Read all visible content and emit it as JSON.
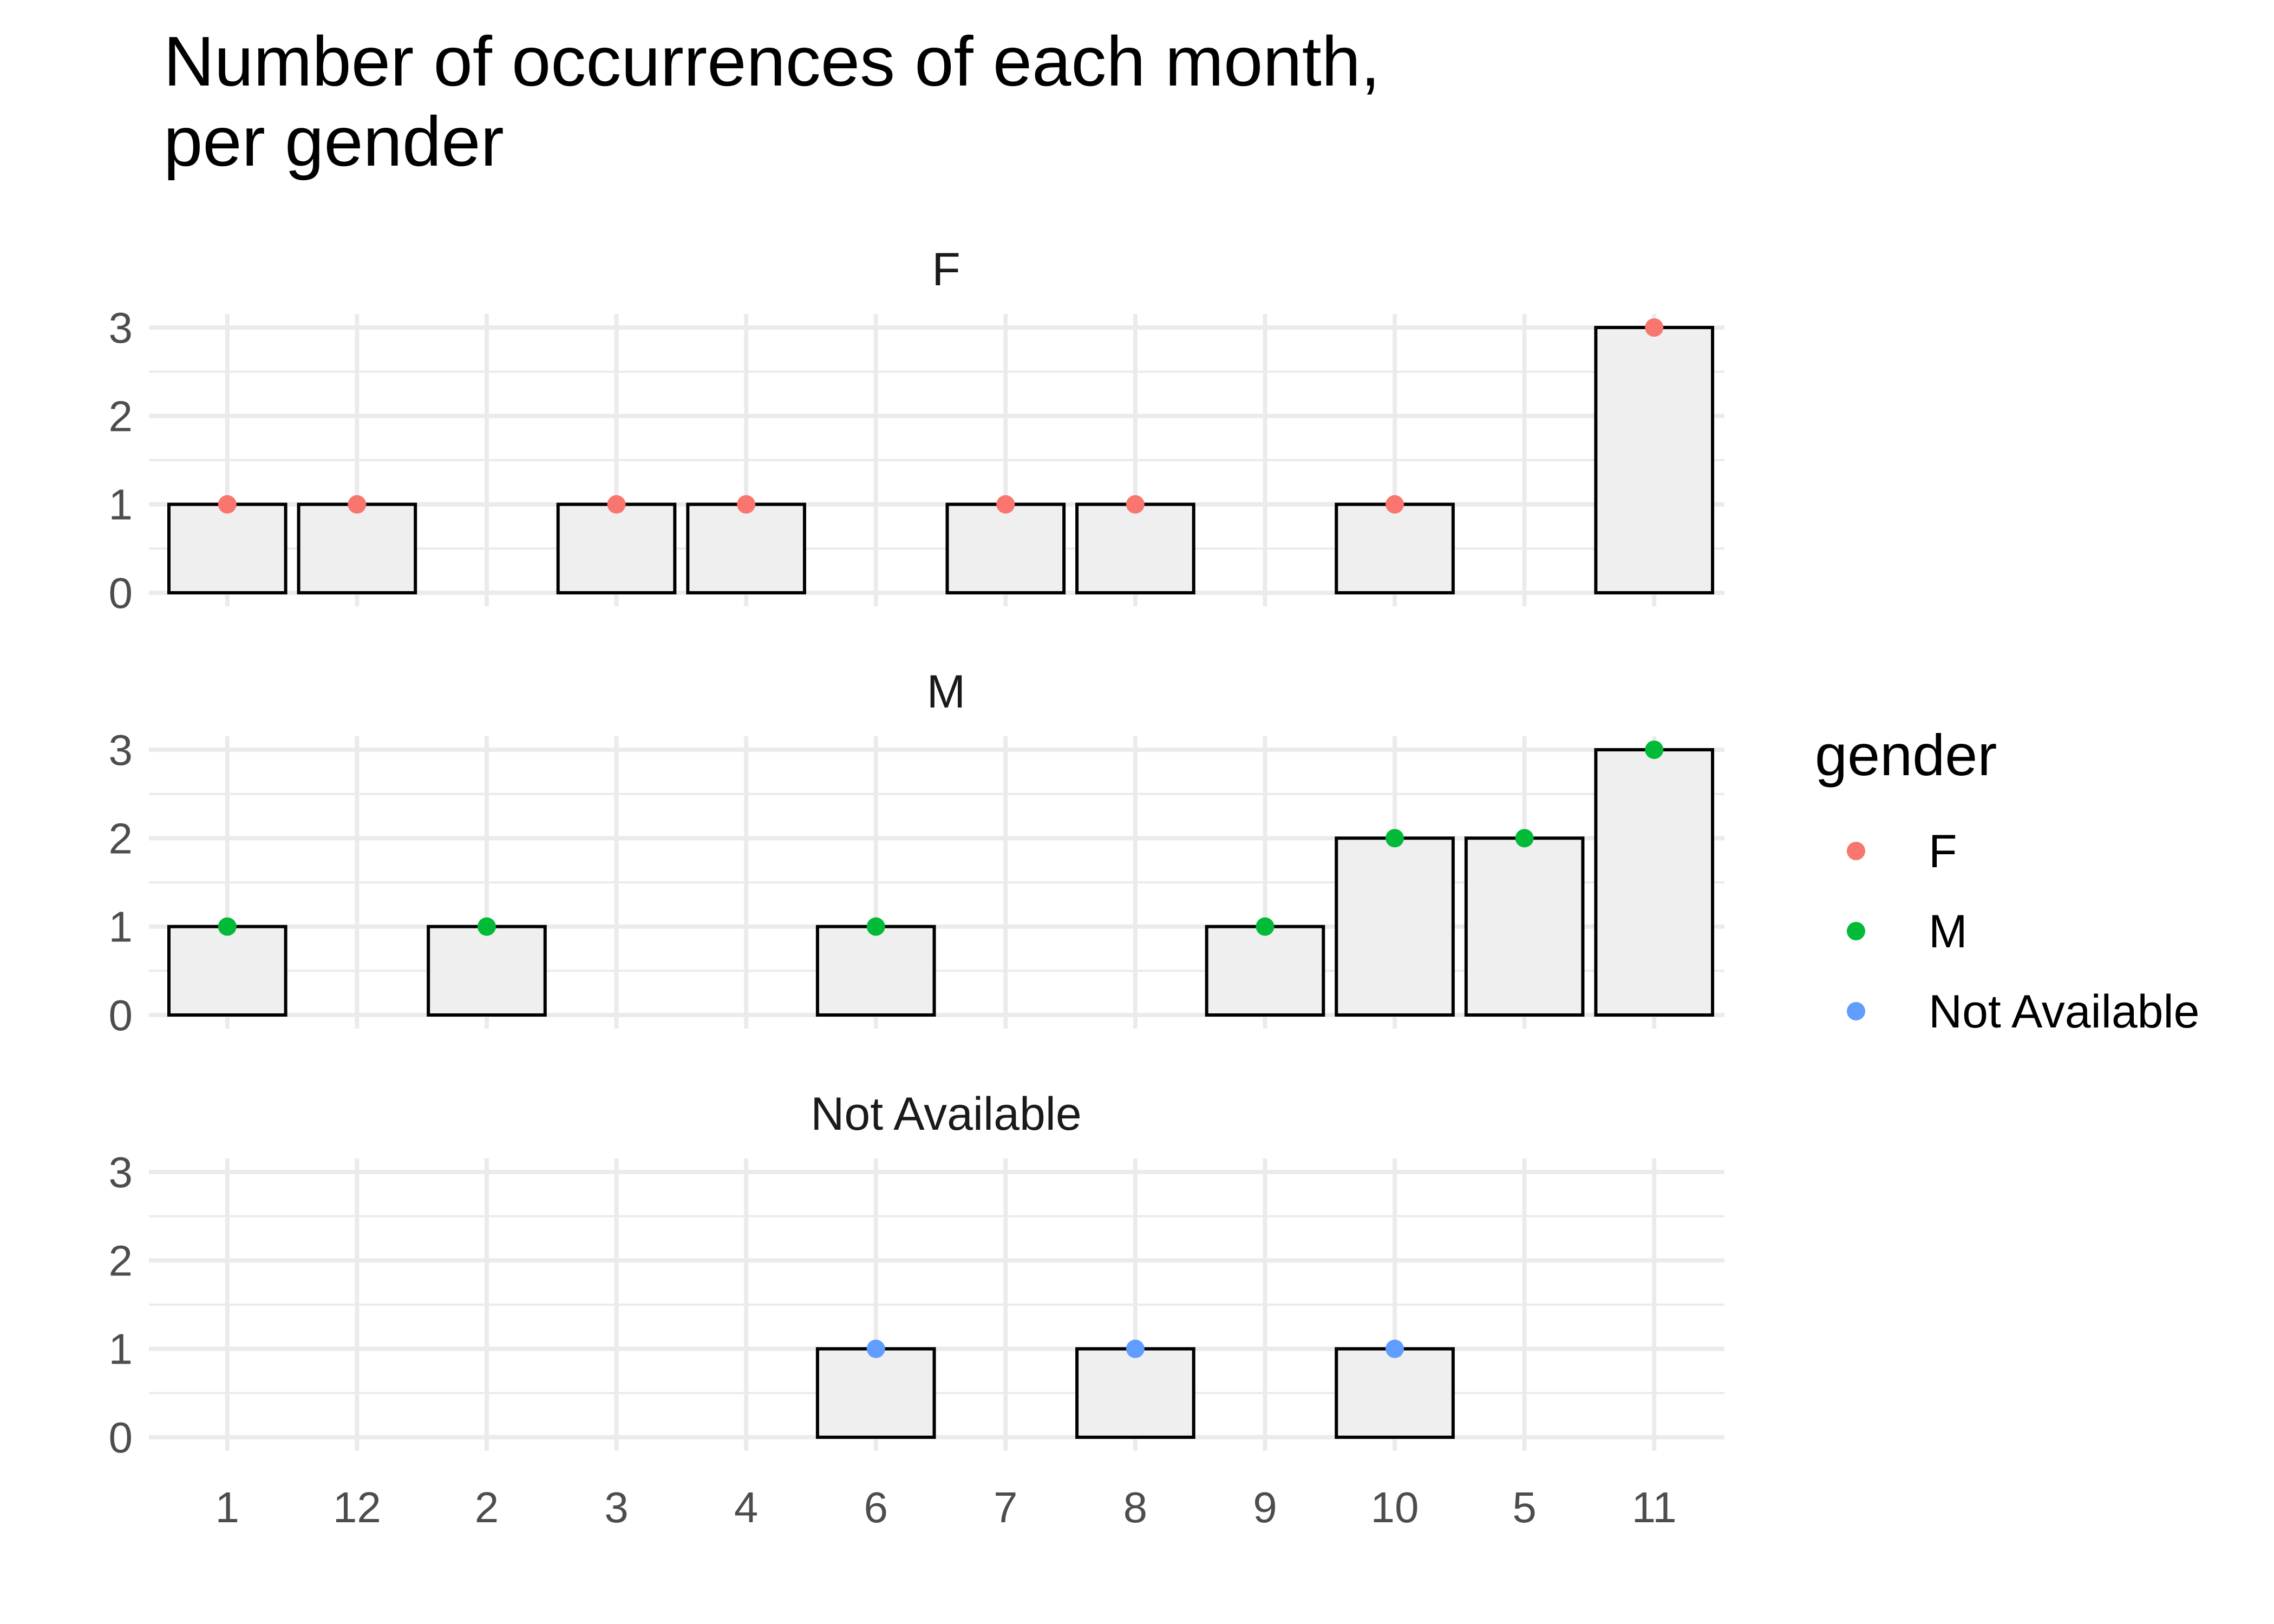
{
  "chart_data": {
    "type": "bar",
    "title": "Number of occurrences of each month,\nper gender",
    "title_lines": [
      "Number of occurrences of each month,",
      "per gender"
    ],
    "xlabel": "",
    "ylabel": "",
    "categories": [
      "1",
      "12",
      "2",
      "3",
      "4",
      "6",
      "7",
      "8",
      "9",
      "10",
      "5",
      "11"
    ],
    "yticks": [
      0,
      1,
      2,
      3
    ],
    "ylim": [
      0,
      3
    ],
    "grid": true,
    "bar_fill": "#EFEFEF",
    "bar_stroke": "#000000",
    "facet_by": "gender",
    "panels": [
      {
        "name": "F",
        "color": "#F8766D",
        "values": {
          "1": 1,
          "12": 1,
          "3": 1,
          "4": 1,
          "7": 1,
          "8": 1,
          "10": 1,
          "11": 3
        }
      },
      {
        "name": "M",
        "color": "#00BA38",
        "values": {
          "1": 1,
          "2": 1,
          "6": 1,
          "9": 1,
          "10": 2,
          "5": 2,
          "11": 3
        }
      },
      {
        "name": "Not Available",
        "color": "#619CFF",
        "values": {
          "6": 1,
          "8": 1,
          "10": 1
        }
      }
    ],
    "legend": {
      "title": "gender",
      "position": "right",
      "entries": [
        {
          "label": "F",
          "color": "#F8766D"
        },
        {
          "label": "M",
          "color": "#00BA38"
        },
        {
          "label": "Not Available",
          "color": "#619CFF"
        }
      ]
    }
  }
}
